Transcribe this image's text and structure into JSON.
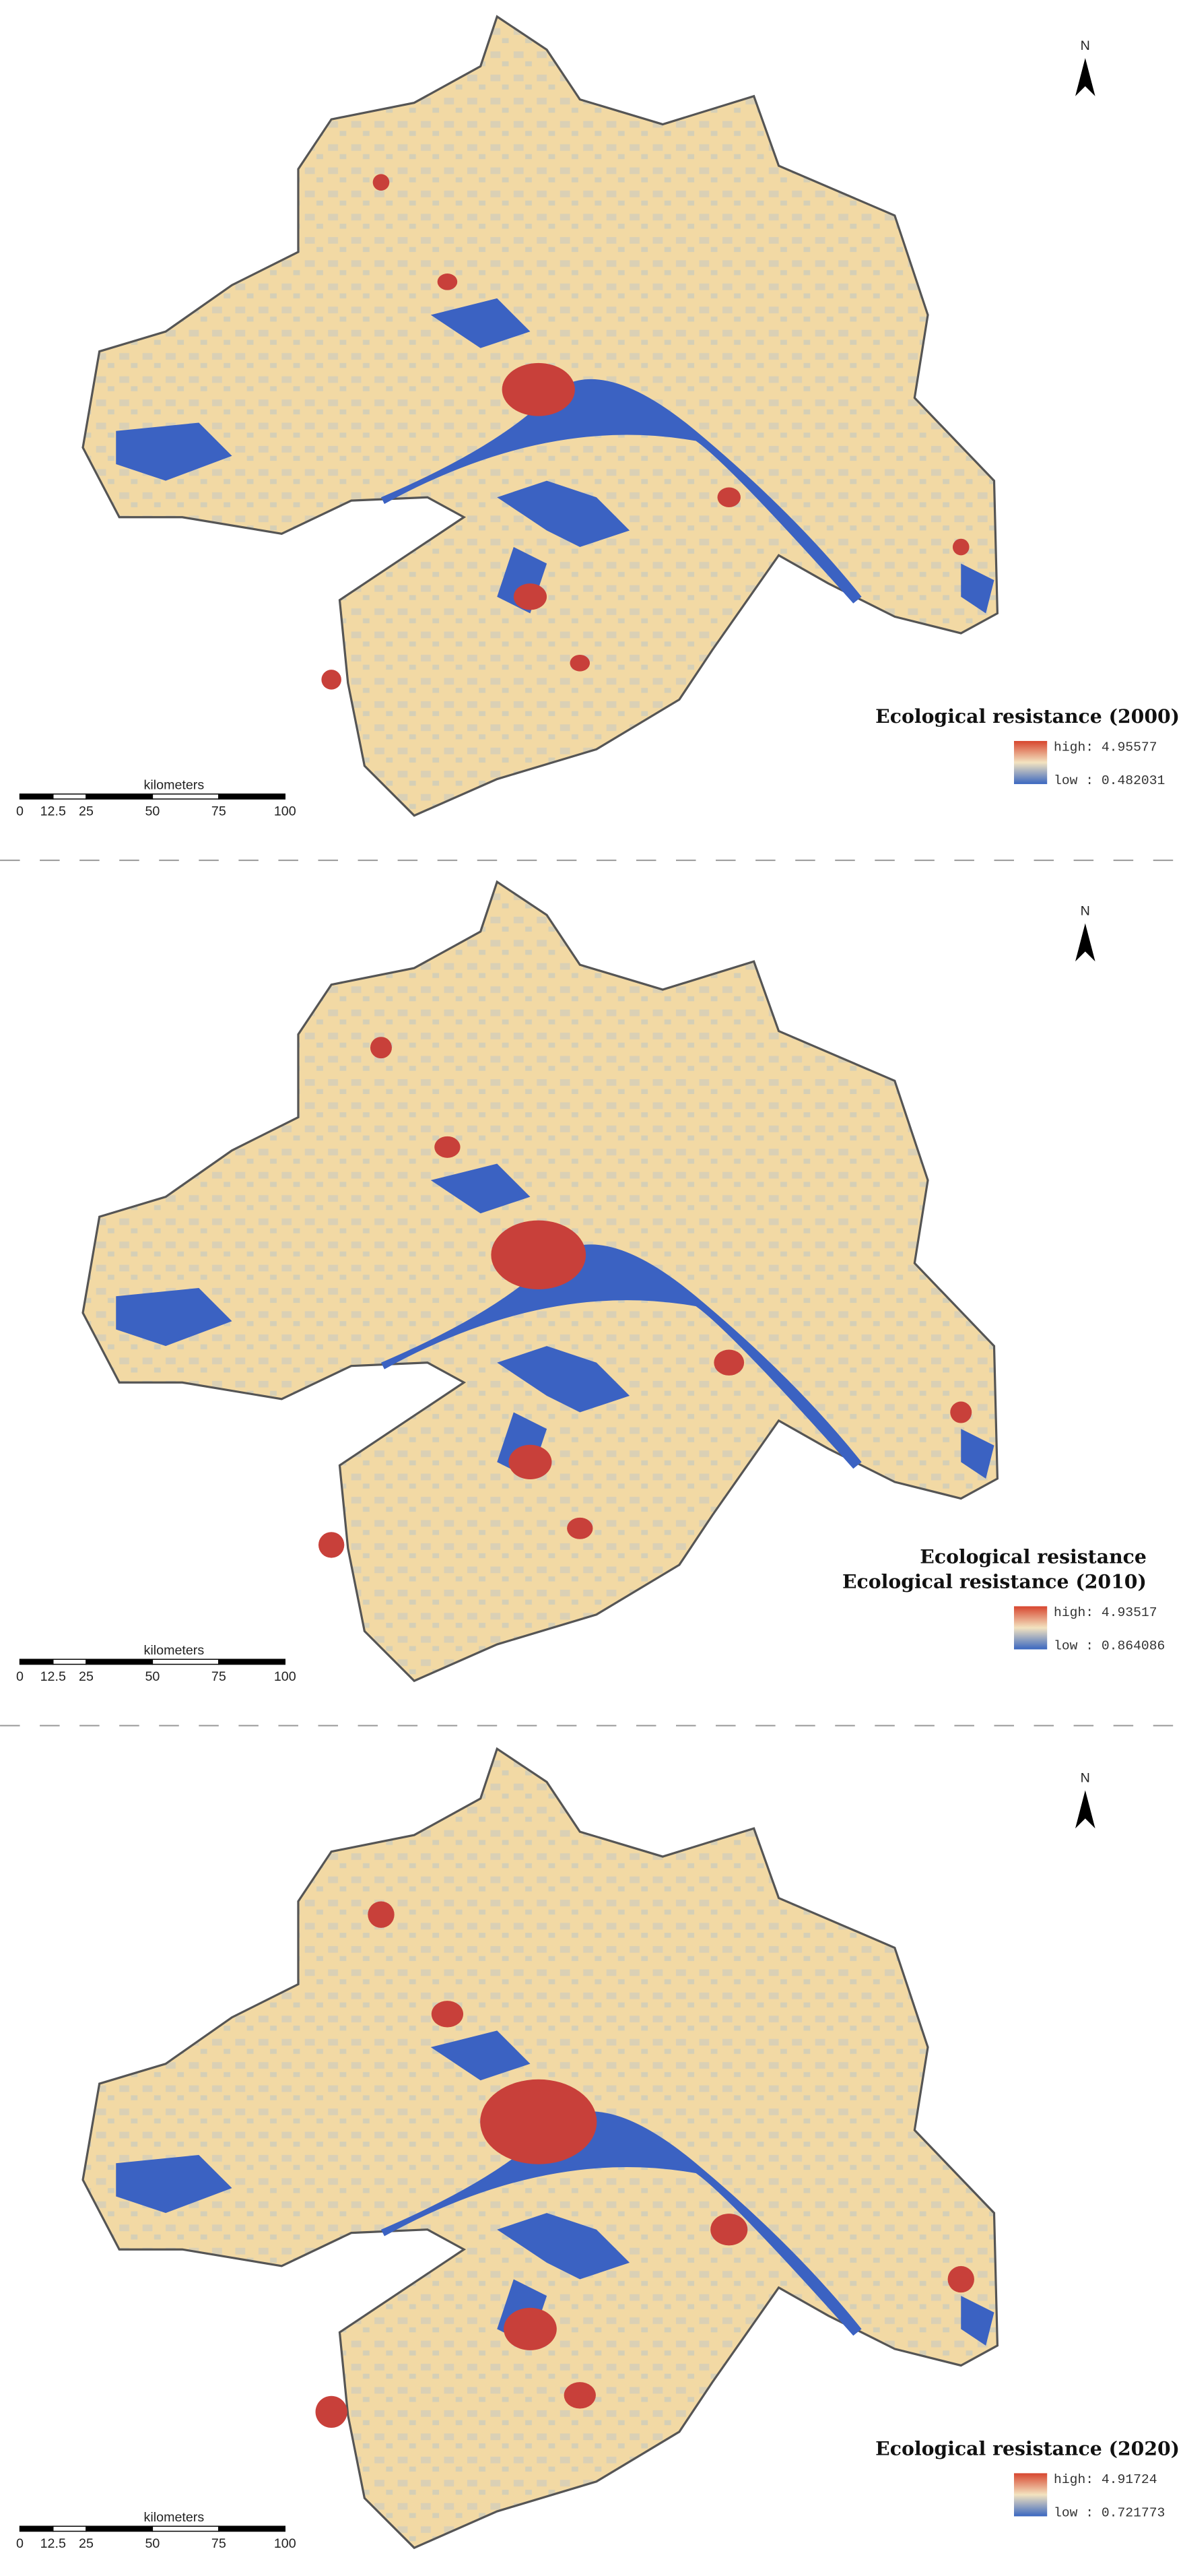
{
  "panels": [
    {
      "title": [
        "Ecological resistance (2000)"
      ],
      "legend": {
        "high": "high: 4.95577",
        "low": "low : 0.482031"
      },
      "scale": {
        "unit": "kilometers",
        "ticks": [
          "0",
          "12.5",
          "25",
          "50",
          "75",
          "100"
        ]
      },
      "north": "N"
    },
    {
      "title": [
        "Ecological resistance",
        "Ecological resistance (2010)"
      ],
      "legend": {
        "high": "high: 4.93517",
        "low": "low : 0.864086"
      },
      "scale": {
        "unit": "kilometers",
        "ticks": [
          "0",
          "12.5",
          "25",
          "50",
          "75",
          "100"
        ]
      },
      "north": "N"
    },
    {
      "title": [
        "Ecological resistance (2020)"
      ],
      "legend": {
        "high": "high: 4.91724",
        "low": "low : 0.721773"
      },
      "scale": {
        "unit": "kilometers",
        "ticks": [
          "0",
          "12.5",
          "25",
          "50",
          "75",
          "100"
        ]
      },
      "north": "N"
    }
  ]
}
